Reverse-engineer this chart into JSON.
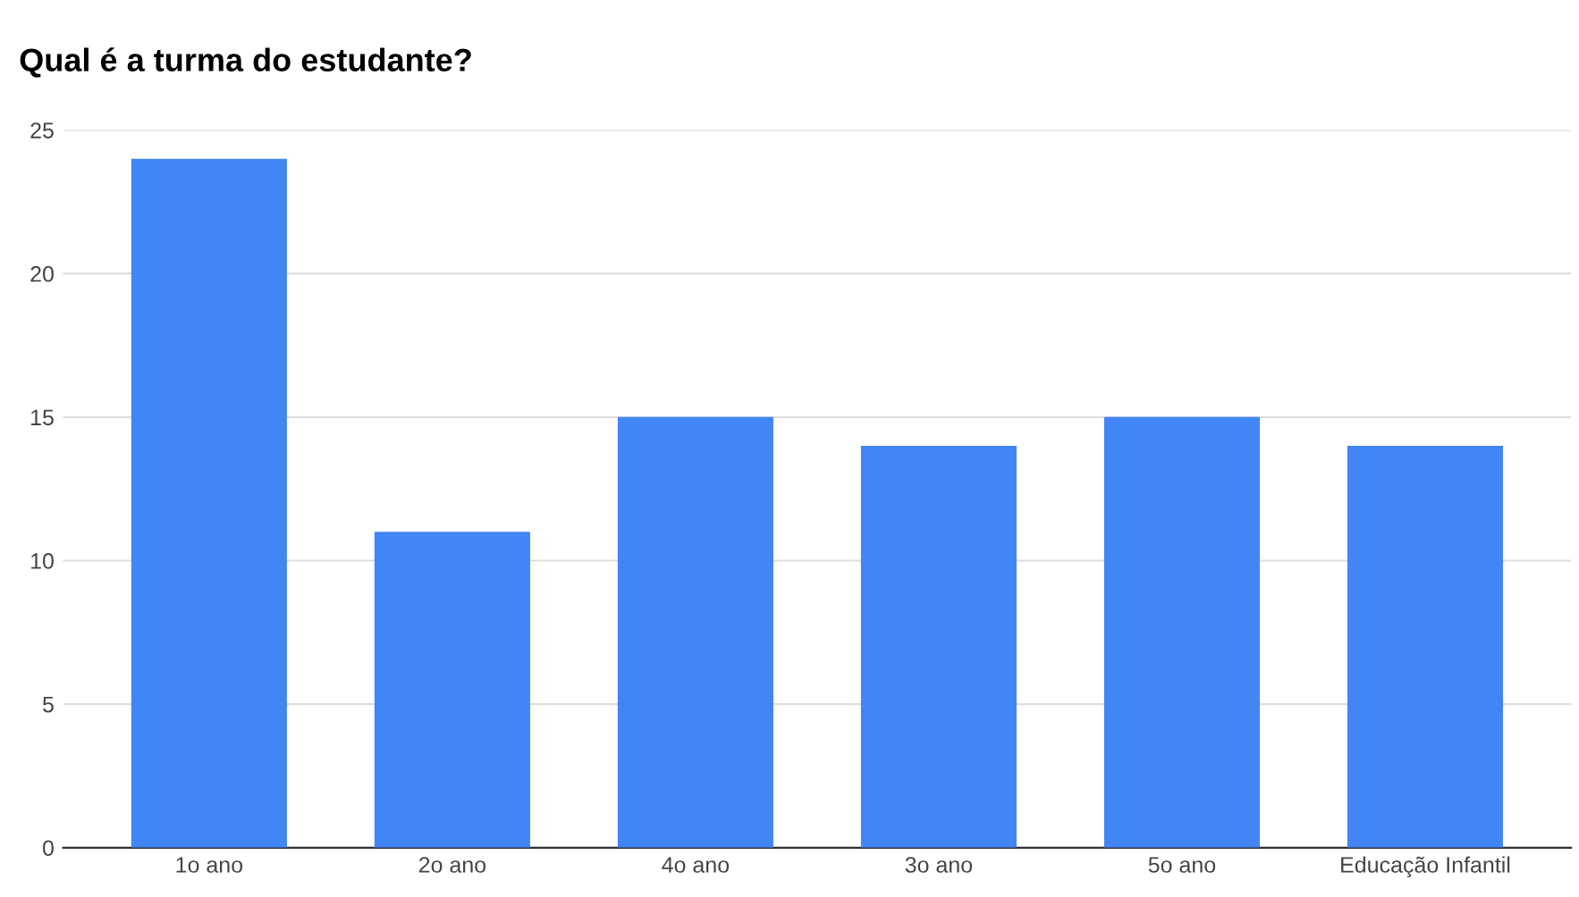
{
  "chart_data": {
    "type": "bar",
    "title": "Qual é a turma do estudante?",
    "categories": [
      "1o ano",
      "2o ano",
      "4o ano",
      "3o ano",
      "5o ano",
      "Educação Infantil"
    ],
    "values": [
      24,
      11,
      15,
      14,
      15,
      14
    ],
    "color": "#4285f4",
    "ylim": [
      0,
      25
    ],
    "yticks": [
      0,
      5,
      10,
      15,
      20,
      25
    ],
    "grid": "y"
  }
}
